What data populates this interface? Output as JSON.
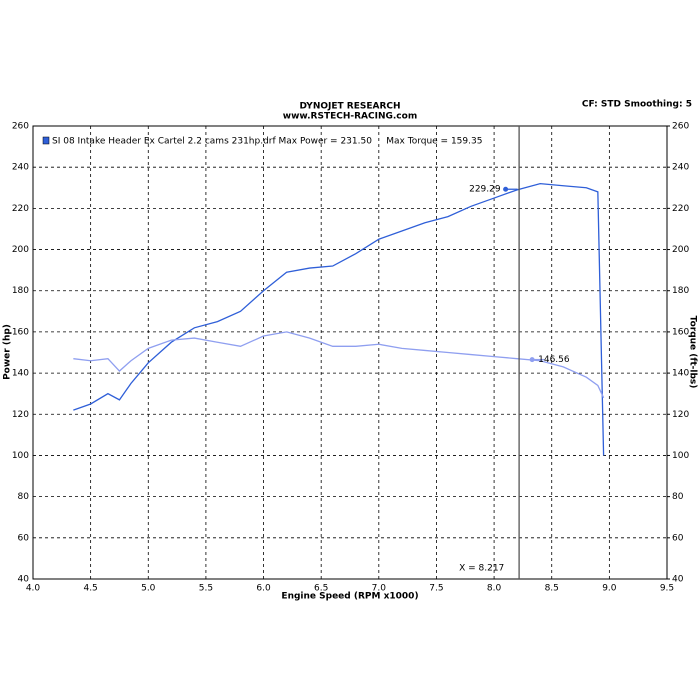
{
  "chart_data": {
    "type": "line",
    "title": "DYNOJET RESEARCH",
    "subtitle": "www.RSTECH-RACING.com",
    "corner_note": "CF: STD   Smoothing: 5",
    "legend": "SI 08 Intake Header Ex Cartel 2.2 cams 231hp.drf Max Power = 231.50     Max Torque = 159.35",
    "xlabel": "Engine Speed (RPM x1000)",
    "ylabel": "Power (hp)",
    "y2label": "Torque (ft-lbs)",
    "xlim": [
      4.0,
      9.5
    ],
    "xticks": [
      {
        "value": 4.0,
        "label": "4.0"
      },
      4.5,
      {
        "value": 5.0,
        "label": "5.0"
      },
      5.5,
      {
        "value": 6.0,
        "label": "6.0"
      },
      6.5,
      {
        "value": 7.0,
        "label": "7.0"
      },
      7.5,
      {
        "value": 8.0,
        "label": "8.0"
      },
      8.5,
      {
        "value": 9.0,
        "label": "9.0"
      },
      9.5
    ],
    "ylim": [
      40,
      260
    ],
    "yticks": [
      40,
      60,
      80,
      100,
      120,
      140,
      160,
      180,
      200,
      220,
      240,
      260
    ],
    "y2lim": [
      40,
      260
    ],
    "y2ticks": [
      40,
      60,
      80,
      100,
      120,
      140,
      160,
      180,
      200,
      220,
      240,
      260
    ],
    "grid": true,
    "x": [
      4.35,
      4.5,
      4.65,
      4.75,
      4.85,
      5.0,
      5.2,
      5.4,
      5.6,
      5.8,
      6.0,
      6.2,
      6.4,
      6.6,
      6.8,
      7.0,
      7.2,
      7.4,
      7.6,
      7.8,
      8.0,
      8.2,
      8.4,
      8.6,
      8.8,
      8.9,
      8.95
    ],
    "series": [
      {
        "color": "#2f5fd8",
        "values": [
          122,
          125,
          130,
          127,
          135,
          145,
          155,
          162,
          165,
          170,
          180,
          189,
          191,
          192,
          198,
          205,
          209,
          213,
          216,
          221,
          225,
          229,
          232,
          231,
          230,
          228,
          100
        ]
      },
      {
        "color": "#8f9ff0",
        "axis": "y2",
        "values": [
          147,
          146,
          147,
          141,
          146,
          152,
          156,
          157,
          155,
          153,
          158,
          160,
          157,
          153,
          153,
          154,
          152,
          151,
          150,
          149,
          148,
          147,
          146,
          143,
          138,
          134,
          128
        ]
      }
    ],
    "markers": [
      {
        "x": 8.1,
        "y": 229.29,
        "color": "#2f5fd8"
      },
      {
        "x": 8.33,
        "y": 146.56,
        "color": "#8f9ff0"
      }
    ],
    "cursor": {
      "x": 8.217,
      "label": "X = 8.217"
    }
  }
}
